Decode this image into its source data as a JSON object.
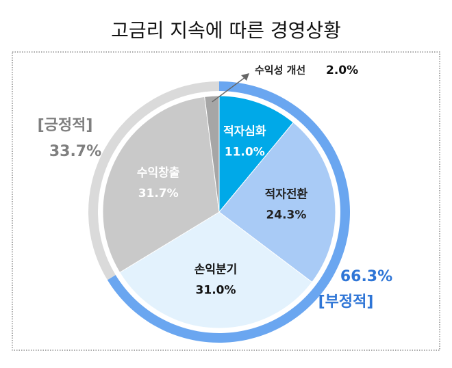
{
  "chart_data": {
    "type": "pie",
    "title": "고금리 지속에 따른 경영상황",
    "categories": [
      "적자심화",
      "적자전환",
      "손익분기",
      "수익창출",
      "수익성 개선"
    ],
    "values": [
      11.0,
      24.3,
      31.0,
      31.7,
      2.0
    ],
    "value_labels": [
      "11.0%",
      "24.3%",
      "31.0%",
      "31.7%",
      "2.0%"
    ],
    "colors": [
      "#00a9e8",
      "#a9cbf6",
      "#e3f2fd",
      "#c9c9c9",
      "#a6a6a6"
    ],
    "groups": [
      {
        "name": "[부정적]",
        "value": 66.3,
        "value_label": "66.3%",
        "color": "#6aa6f0"
      },
      {
        "name": "[긍정적]",
        "value": 33.7,
        "value_label": "33.7%",
        "color": "#dadada"
      }
    ]
  }
}
